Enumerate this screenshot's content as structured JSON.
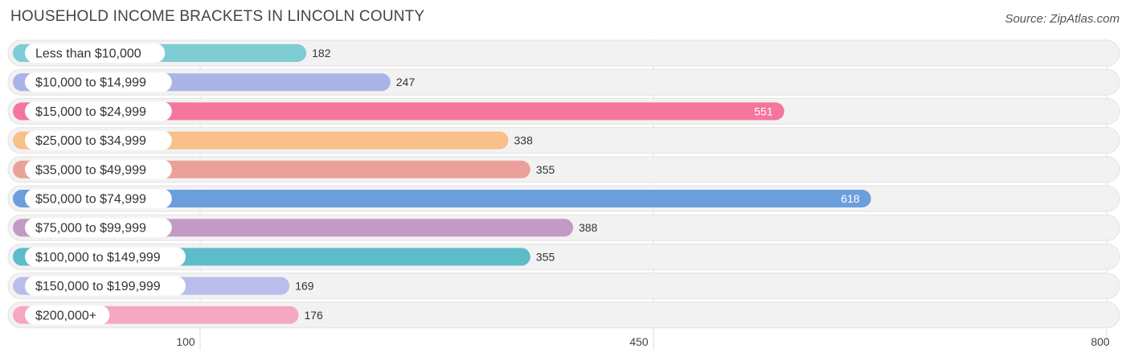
{
  "header": {
    "title": "HOUSEHOLD INCOME BRACKETS IN LINCOLN COUNTY",
    "source": "Source: ZipAtlas.com"
  },
  "chart_data": {
    "type": "bar",
    "orientation": "horizontal",
    "title": "HOUSEHOLD INCOME BRACKETS IN LINCOLN COUNTY",
    "categories": [
      "Less than $10,000",
      "$10,000 to $14,999",
      "$15,000 to $24,999",
      "$25,000 to $34,999",
      "$35,000 to $49,999",
      "$50,000 to $74,999",
      "$75,000 to $99,999",
      "$100,000 to $149,999",
      "$150,000 to $199,999",
      "$200,000+"
    ],
    "values": [
      182,
      247,
      551,
      338,
      355,
      618,
      388,
      355,
      169,
      176
    ],
    "colors": [
      "#7ecdd4",
      "#aab4e6",
      "#f4769c",
      "#f9c08a",
      "#eca09a",
      "#6a9fdc",
      "#c29ac4",
      "#5cbcc8",
      "#b8bdec",
      "#f6a7c2"
    ],
    "xticks": [
      100,
      450,
      800
    ],
    "xlim": [
      -40,
      800
    ],
    "grid": true,
    "xlabel": "",
    "ylabel": ""
  }
}
